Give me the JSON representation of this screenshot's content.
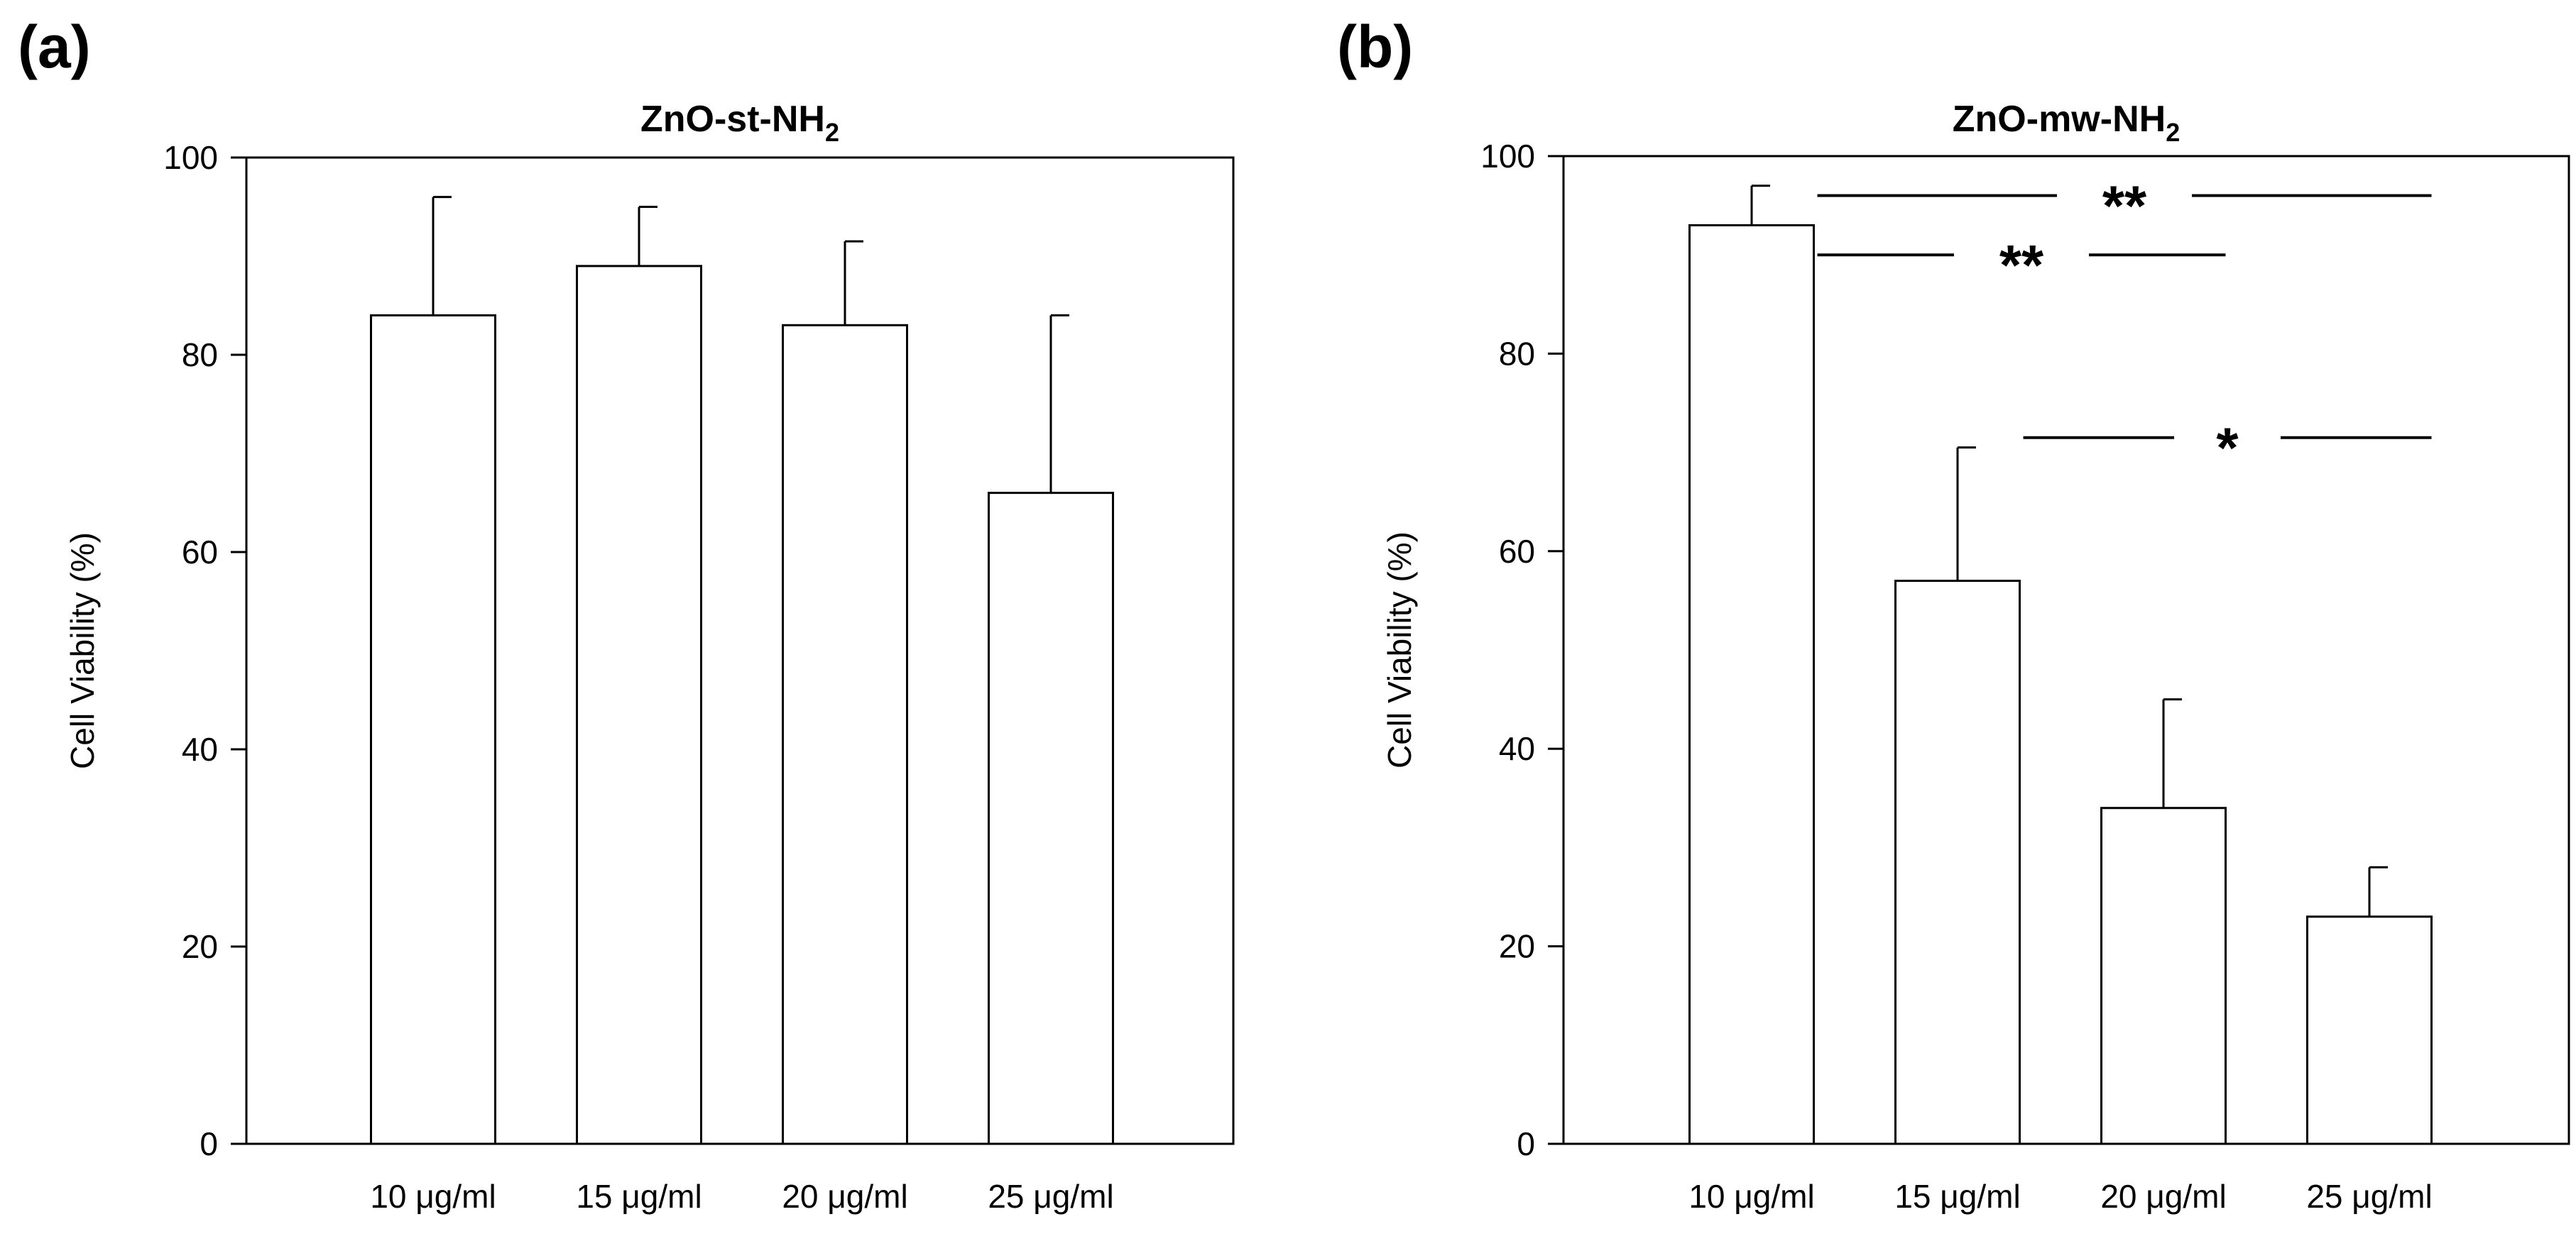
{
  "chart_data": [
    {
      "panel_label": "(a)",
      "type": "bar",
      "title_main": "ZnO-st-NH",
      "title_sub": "2",
      "title": "ZnO-st-NH2",
      "xlabel": "",
      "ylabel": "Cell Viability (%)",
      "ylim": [
        0,
        100
      ],
      "yticks": [
        0,
        20,
        40,
        60,
        80,
        100
      ],
      "categories": [
        "10 μg/ml",
        "15 μg/ml",
        "20 μg/ml",
        "25 μg/ml"
      ],
      "values": [
        84,
        89,
        83,
        66
      ],
      "errors": [
        12,
        6,
        8.5,
        18
      ],
      "significance": []
    },
    {
      "panel_label": "(b)",
      "type": "bar",
      "title_main": "ZnO-mw-NH",
      "title_sub": "2",
      "title": "ZnO-mw-NH2",
      "xlabel": "",
      "ylabel": "Cell Viability (%)",
      "ylim": [
        0,
        100
      ],
      "yticks": [
        0,
        20,
        40,
        60,
        80,
        100
      ],
      "categories": [
        "10 μg/ml",
        "15 μg/ml",
        "20 μg/ml",
        "25 μg/ml"
      ],
      "values": [
        93,
        57,
        34,
        23
      ],
      "errors": [
        4,
        13.5,
        11,
        5
      ],
      "significance": [
        {
          "from": 0,
          "to": 3,
          "y": 96,
          "label": "**"
        },
        {
          "from": 0,
          "to": 2,
          "y": 90,
          "label": "**"
        },
        {
          "from": 1,
          "to": 3,
          "y": 71.5,
          "label": "*"
        }
      ]
    }
  ]
}
